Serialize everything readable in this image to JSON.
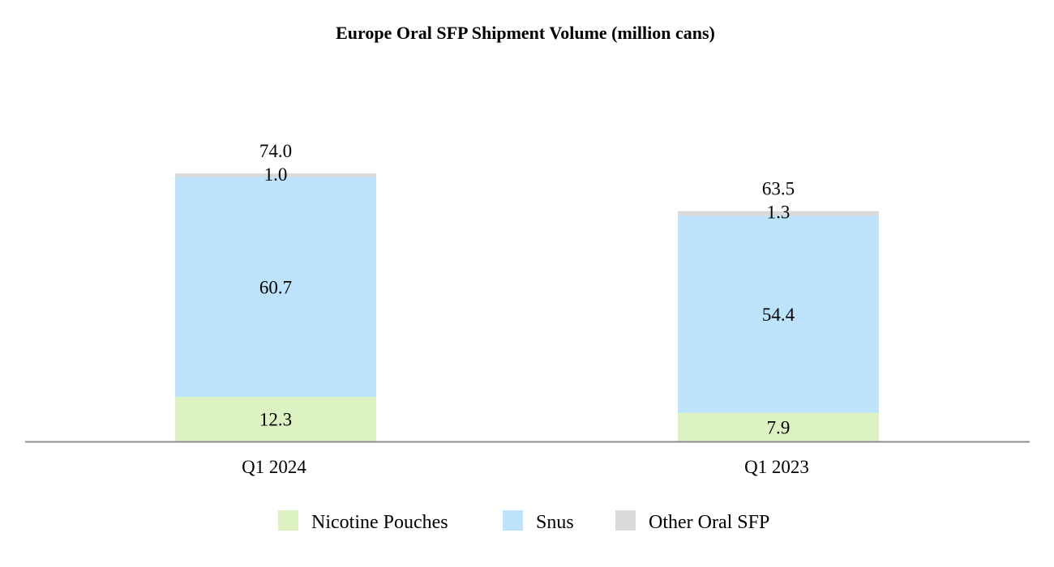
{
  "chart_data": {
    "type": "bar",
    "stacked": true,
    "title": "Europe Oral SFP Shipment Volume (million cans)",
    "xlabel": "",
    "ylabel": "",
    "categories": [
      "Q1 2024",
      "Q1 2023"
    ],
    "series": [
      {
        "name": "Nicotine Pouches",
        "values": [
          12.3,
          7.9
        ],
        "labels": [
          "12.3",
          "7.9"
        ],
        "color": "#dcf2c2"
      },
      {
        "name": "Snus",
        "values": [
          60.7,
          54.4
        ],
        "labels": [
          "60.7",
          "54.4"
        ],
        "color": "#bde2fc"
      },
      {
        "name": "Other Oral SFP",
        "values": [
          1.0,
          1.3
        ],
        "labels": [
          "1.0",
          "1.3"
        ],
        "color": "#d9d9d9"
      }
    ],
    "totals": [
      "74.0",
      "63.5"
    ],
    "ylim": [
      0,
      74.7
    ],
    "grid": false,
    "legend": "bottom-center"
  }
}
